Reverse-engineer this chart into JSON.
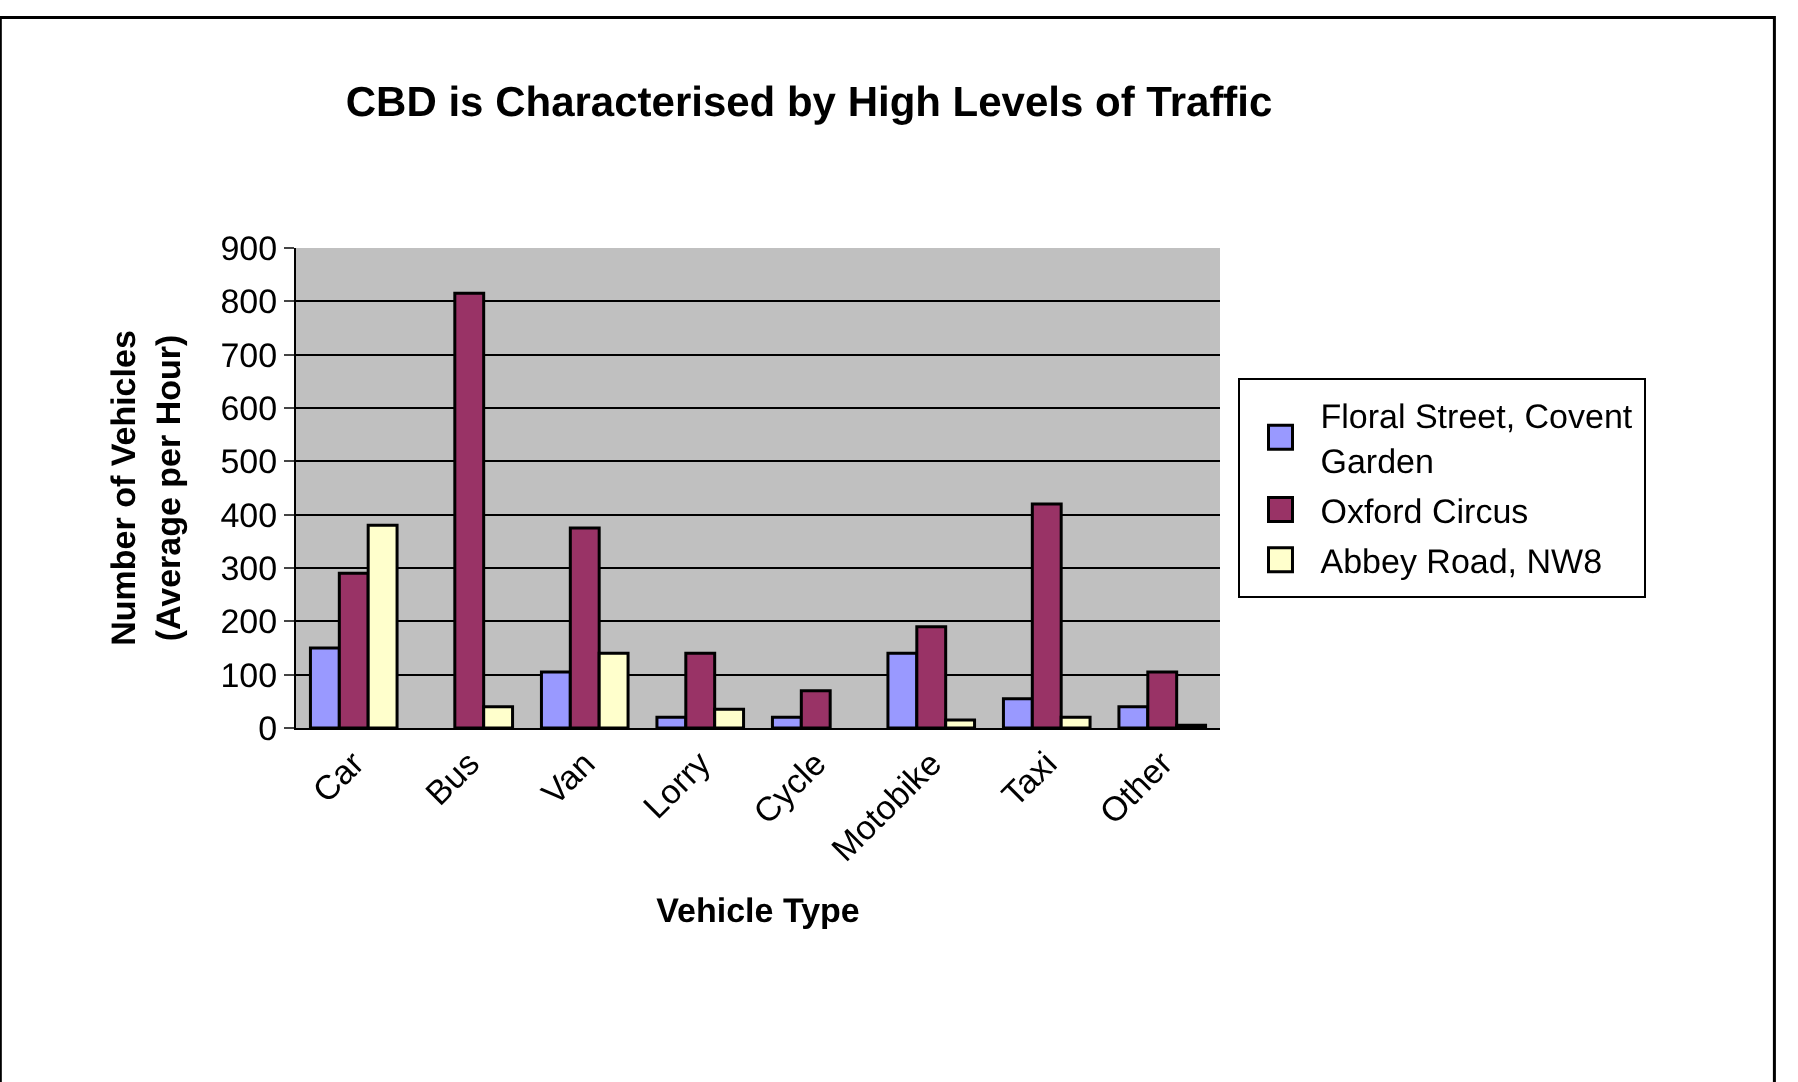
{
  "chart_data": {
    "type": "bar",
    "title": "CBD is Characterised by High Levels of Traffic",
    "xlabel": "Vehicle Type",
    "ylabel": "Number of Vehicles (Average per Hour)",
    "categories": [
      "Car",
      "Bus",
      "Van",
      "Lorry",
      "Cycle",
      "Motobike",
      "Taxi",
      "Other"
    ],
    "series": [
      {
        "name": "Floral Street, Covent Garden",
        "color": "#9999ff",
        "values": [
          150,
          null,
          105,
          20,
          20,
          140,
          55,
          40
        ]
      },
      {
        "name": "Oxford Circus",
        "color": "#993366",
        "values": [
          290,
          815,
          375,
          140,
          70,
          190,
          420,
          105
        ]
      },
      {
        "name": "Abbey Road, NW8",
        "color": "#ffffcc",
        "values": [
          380,
          40,
          140,
          35,
          null,
          15,
          20,
          5
        ]
      }
    ],
    "ylim": [
      0,
      900
    ],
    "yticks": [
      0,
      100,
      200,
      300,
      400,
      500,
      600,
      700,
      800,
      900
    ],
    "grid": "y",
    "legend": "right"
  }
}
